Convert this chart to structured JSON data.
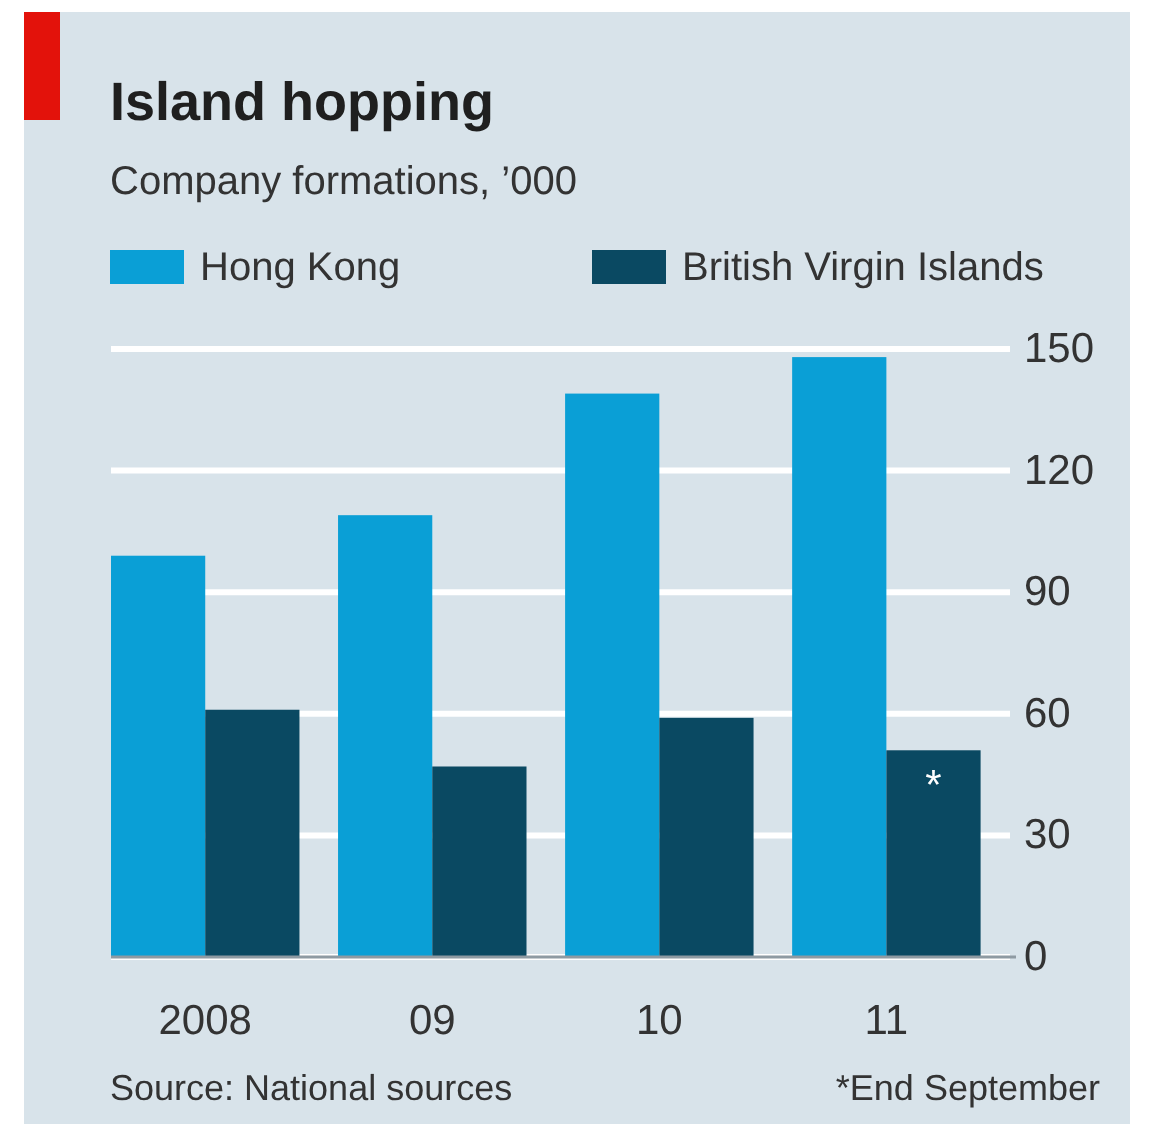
{
  "chart_data": {
    "type": "bar",
    "title": "Island hopping",
    "subtitle": "Company formations, ’000",
    "categories": [
      "2008",
      "09",
      "10",
      "11"
    ],
    "series": [
      {
        "name": "Hong Kong",
        "color": "#0a9fd6",
        "values": [
          99,
          109,
          139,
          148
        ]
      },
      {
        "name": "British Virgin Islands",
        "color": "#0a4962",
        "values": [
          61,
          47,
          59,
          51
        ]
      }
    ],
    "ylim": [
      0,
      150
    ],
    "yticks": [
      0,
      30,
      60,
      90,
      120,
      150
    ],
    "grid": "y",
    "legend": "top",
    "annotations": [
      {
        "text": "*",
        "x": "11",
        "y": 45
      },
      "Source: National sources",
      "*End September"
    ]
  }
}
